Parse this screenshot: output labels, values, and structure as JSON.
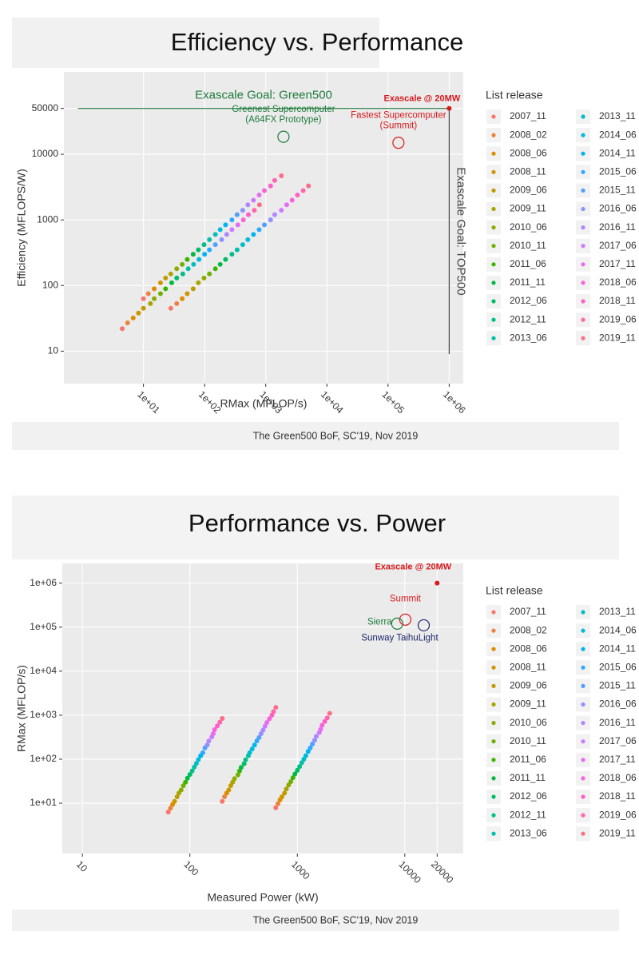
{
  "chart_data": [
    {
      "type": "scatter",
      "title": "Efficiency vs. Performance",
      "caption": "The Green500 BoF, SC'19, Nov 2019",
      "x_label": "RMax (MFLOP/s)",
      "y_label": "Efficiency (MFLOPS/W)",
      "legend_title": "List release",
      "log_x": true,
      "log_y": true,
      "grid": true,
      "xlim": [
        0.5,
        1700000
      ],
      "ylim": [
        3.2,
        180000
      ],
      "xticks": [
        {
          "value": 10,
          "label": "1e+01"
        },
        {
          "value": 100,
          "label": "1e+02"
        },
        {
          "value": 1000,
          "label": "1e+03"
        },
        {
          "value": 10000,
          "label": "1e+04"
        },
        {
          "value": 100000,
          "label": "1e+05"
        },
        {
          "value": 1000000,
          "label": "1e+06"
        }
      ],
      "yticks": [
        10,
        100,
        1000,
        10000,
        50000
      ],
      "series": [
        {
          "name": "2007_11",
          "color": "#F8766D",
          "x": [
            4.5,
            10,
            28
          ],
          "y": [
            22,
            63,
            45
          ]
        },
        {
          "name": "2008_02",
          "color": "#EC823C",
          "x": [
            5.5,
            12,
            35
          ],
          "y": [
            27,
            75,
            53
          ]
        },
        {
          "name": "2008_06",
          "color": "#DE8C00",
          "x": [
            6.8,
            15,
            43
          ],
          "y": [
            32,
            89,
            63
          ]
        },
        {
          "name": "2008_11",
          "color": "#CD9600",
          "x": [
            8.3,
            19,
            52
          ],
          "y": [
            38,
            110,
            75
          ]
        },
        {
          "name": "2009_06",
          "color": "#BE9C00",
          "x": [
            10,
            23,
            65
          ],
          "y": [
            45,
            130,
            89
          ]
        },
        {
          "name": "2009_11",
          "color": "#A9A400",
          "x": [
            13,
            28,
            79
          ],
          "y": [
            53,
            150,
            110
          ]
        },
        {
          "name": "2010_06",
          "color": "#8FAA00",
          "x": [
            15,
            35,
            98
          ],
          "y": [
            63,
            180,
            130
          ]
        },
        {
          "name": "2010_11",
          "color": "#6FB000",
          "x": [
            19,
            43,
            120
          ],
          "y": [
            75,
            210,
            150
          ]
        },
        {
          "name": "2011_06",
          "color": "#3BB500",
          "x": [
            23,
            52,
            150
          ],
          "y": [
            89,
            250,
            180
          ]
        },
        {
          "name": "2011_11",
          "color": "#00BA42",
          "x": [
            29,
            65,
            180
          ],
          "y": [
            110,
            300,
            210
          ]
        },
        {
          "name": "2012_06",
          "color": "#00BD64",
          "x": [
            35,
            79,
            220
          ],
          "y": [
            130,
            350,
            250
          ]
        },
        {
          "name": "2012_11",
          "color": "#00C086",
          "x": [
            44,
            98,
            280
          ],
          "y": [
            150,
            420,
            300
          ]
        },
        {
          "name": "2013_06",
          "color": "#00C0A6",
          "x": [
            54,
            120,
            340
          ],
          "y": [
            180,
            500,
            350
          ]
        },
        {
          "name": "2013_11",
          "color": "#00BFC4",
          "x": [
            66,
            150,
            420
          ],
          "y": [
            210,
            600,
            420
          ]
        },
        {
          "name": "2014_06",
          "color": "#00BBDB",
          "x": [
            81,
            180,
            510
          ],
          "y": [
            250,
            710,
            500
          ]
        },
        {
          "name": "2014_11",
          "color": "#00B4EF",
          "x": [
            100,
            220,
            630
          ],
          "y": [
            300,
            840,
            600
          ]
        },
        {
          "name": "2015_06",
          "color": "#2DAAFF",
          "x": [
            120,
            280,
            780
          ],
          "y": [
            350,
            1000,
            710
          ]
        },
        {
          "name": "2015_11",
          "color": "#529FFF",
          "x": [
            150,
            340,
            950
          ],
          "y": [
            420,
            1200,
            840
          ]
        },
        {
          "name": "2016_06",
          "color": "#8F91FF",
          "x": [
            190,
            420,
            1200
          ],
          "y": [
            500,
            1400,
            1000
          ]
        },
        {
          "name": "2016_11",
          "color": "#B186FF",
          "x": [
            230,
            510,
            1400
          ],
          "y": [
            600,
            1700,
            1200
          ]
        },
        {
          "name": "2017_06",
          "color": "#CE79FF",
          "x": [
            280,
            630,
            1800
          ],
          "y": [
            710,
            2000,
            1400
          ]
        },
        {
          "name": "2017_11",
          "color": "#E76BF3",
          "x": [
            350,
            780,
            2200
          ],
          "y": [
            840,
            2400,
            1700
          ]
        },
        {
          "name": "2018_06",
          "color": "#F763DB",
          "x": [
            430,
            950,
            2700
          ],
          "y": [
            1000,
            2800,
            2000
          ]
        },
        {
          "name": "2018_11",
          "color": "#FD61C9",
          "x": [
            520,
            1200,
            3300
          ],
          "y": [
            1200,
            3300,
            2400
          ]
        },
        {
          "name": "2019_06",
          "color": "#FF66AE",
          "x": [
            650,
            1400,
            4100
          ],
          "y": [
            1400,
            4000,
            2800
          ]
        },
        {
          "name": "2019_11",
          "color": "#FB6E8A",
          "x": [
            790,
            1800,
            5000
          ],
          "y": [
            1700,
            4700,
            3300
          ]
        }
      ],
      "annotations": [
        {
          "kind": "hline",
          "text": "Exascale Goal: Green500",
          "color": "#1e7b3c",
          "y": 50000,
          "x": [
            0.85,
            1000000
          ]
        },
        {
          "kind": "vline",
          "text": "Exascale Goal: TOP500",
          "color": "#444444",
          "x": 1000000,
          "y": [
            9,
            50000
          ]
        },
        {
          "kind": "point",
          "text": "Exascale @ 20MW",
          "color": "#d7191c",
          "x": 1000000,
          "y": 50000
        },
        {
          "kind": "circle",
          "lines": [
            "Greenest Supercomputer",
            "(A64FX Prototype)"
          ],
          "color": "#1e7b3c",
          "x": 1950,
          "y": 18500
        },
        {
          "kind": "circle",
          "lines": [
            "Fastest Supercomputer",
            "(Summit)"
          ],
          "color": "#d7191c",
          "x": 148000,
          "y": 15000
        }
      ]
    },
    {
      "type": "scatter",
      "title": "Performance vs. Power",
      "caption": "The Green500 BoF, SC'19, Nov 2019",
      "x_label": "Measured Power (kW)",
      "y_label": "RMax (MFLOP/s)",
      "legend_title": "List release",
      "log_x": true,
      "log_y": true,
      "grid": true,
      "xlim": [
        6.5,
        35000
      ],
      "ylim": [
        0.72,
        2800000
      ],
      "xticks": [
        10,
        100,
        1000,
        10000,
        20000
      ],
      "yticks": [
        {
          "value": 10,
          "label": "1e+01"
        },
        {
          "value": 100,
          "label": "1e+02"
        },
        {
          "value": 1000,
          "label": "1e+03"
        },
        {
          "value": 10000,
          "label": "1e+04"
        },
        {
          "value": 100000,
          "label": "1e+05"
        },
        {
          "value": 1000000,
          "label": "1e+06"
        }
      ],
      "series": [
        {
          "name": "2007_11",
          "color": "#F8766D",
          "x": [
            63,
            200,
            630
          ],
          "y": [
            6.3,
            11,
            7.9
          ]
        },
        {
          "name": "2008_02",
          "color": "#EC823C",
          "x": [
            66,
            210,
            660
          ],
          "y": [
            7.7,
            14,
            9.7
          ]
        },
        {
          "name": "2008_06",
          "color": "#DE8C00",
          "x": [
            69,
            220,
            690
          ],
          "y": [
            9.3,
            17,
            12
          ]
        },
        {
          "name": "2008_11",
          "color": "#CD9600",
          "x": [
            72,
            230,
            720
          ],
          "y": [
            11,
            20,
            14
          ]
        },
        {
          "name": "2009_06",
          "color": "#BE9C00",
          "x": [
            76,
            240,
            760
          ],
          "y": [
            14,
            25,
            17
          ]
        },
        {
          "name": "2009_11",
          "color": "#A9A400",
          "x": [
            79,
            250,
            790
          ],
          "y": [
            17,
            30,
            21
          ]
        },
        {
          "name": "2010_06",
          "color": "#8FAA00",
          "x": [
            83,
            260,
            830
          ],
          "y": [
            20,
            36,
            26
          ]
        },
        {
          "name": "2010_11",
          "color": "#6FB000",
          "x": [
            87,
            280,
            870
          ],
          "y": [
            25,
            44,
            31
          ]
        },
        {
          "name": "2011_06",
          "color": "#3BB500",
          "x": [
            91,
            290,
            910
          ],
          "y": [
            30,
            54,
            38
          ]
        },
        {
          "name": "2011_11",
          "color": "#00BA42",
          "x": [
            95,
            300,
            950
          ],
          "y": [
            37,
            65,
            46
          ]
        },
        {
          "name": "2012_06",
          "color": "#00BD64",
          "x": [
            100,
            320,
            1000
          ],
          "y": [
            45,
            79,
            56
          ]
        },
        {
          "name": "2012_11",
          "color": "#00C086",
          "x": [
            105,
            330,
            1050
          ],
          "y": [
            54,
            97,
            68
          ]
        },
        {
          "name": "2013_06",
          "color": "#00C0A6",
          "x": [
            110,
            350,
            1100
          ],
          "y": [
            66,
            120,
            83
          ]
        },
        {
          "name": "2013_11",
          "color": "#00BFC4",
          "x": [
            115,
            360,
            1150
          ],
          "y": [
            80,
            140,
            100
          ]
        },
        {
          "name": "2014_06",
          "color": "#00BBDB",
          "x": [
            120,
            380,
            1200
          ],
          "y": [
            98,
            170,
            120
          ]
        },
        {
          "name": "2014_11",
          "color": "#00B4EF",
          "x": [
            126,
            400,
            1260
          ],
          "y": [
            120,
            210,
            150
          ]
        },
        {
          "name": "2015_06",
          "color": "#2DAAFF",
          "x": [
            132,
            420,
            1320
          ],
          "y": [
            140,
            260,
            180
          ]
        },
        {
          "name": "2015_11",
          "color": "#529FFF",
          "x": [
            138,
            440,
            1380
          ],
          "y": [
            180,
            310,
            220
          ]
        },
        {
          "name": "2016_06",
          "color": "#8F91FF",
          "x": [
            145,
            460,
            1450
          ],
          "y": [
            210,
            380,
            270
          ]
        },
        {
          "name": "2016_11",
          "color": "#B186FF",
          "x": [
            150,
            480,
            1500
          ],
          "y": [
            260,
            460,
            330
          ]
        },
        {
          "name": "2017_06",
          "color": "#CE79FF",
          "x": [
            160,
            500,
            1600
          ],
          "y": [
            320,
            560,
            400
          ]
        },
        {
          "name": "2017_11",
          "color": "#E76BF3",
          "x": [
            165,
            520,
            1650
          ],
          "y": [
            380,
            680,
            480
          ]
        },
        {
          "name": "2018_06",
          "color": "#F763DB",
          "x": [
            170,
            550,
            1700
          ],
          "y": [
            470,
            830,
            590
          ]
        },
        {
          "name": "2018_11",
          "color": "#FD61C9",
          "x": [
            180,
            580,
            1800
          ],
          "y": [
            570,
            1000,
            720
          ]
        },
        {
          "name": "2019_06",
          "color": "#FF66AE",
          "x": [
            190,
            600,
            1900
          ],
          "y": [
            690,
            1200,
            870
          ]
        },
        {
          "name": "2019_11",
          "color": "#FB6E8A",
          "x": [
            200,
            630,
            2000
          ],
          "y": [
            840,
            1500,
            1100
          ]
        }
      ],
      "annotations": [
        {
          "kind": "point",
          "text": "Exascale @ 20MW",
          "color": "#d7191c",
          "x": 20000,
          "y": 1000000
        },
        {
          "kind": "circle",
          "lines": [
            "Summit"
          ],
          "color": "#d7191c",
          "x": 10100,
          "y": 148000
        },
        {
          "kind": "circle",
          "lines": [
            "Sierra"
          ],
          "color": "#1e7b3c",
          "x": 8500,
          "y": 120000
        },
        {
          "kind": "circle",
          "lines": [
            "Sunway TaihuLight"
          ],
          "color": "#1f2a6b",
          "x": 15000,
          "y": 110000
        }
      ]
    }
  ]
}
